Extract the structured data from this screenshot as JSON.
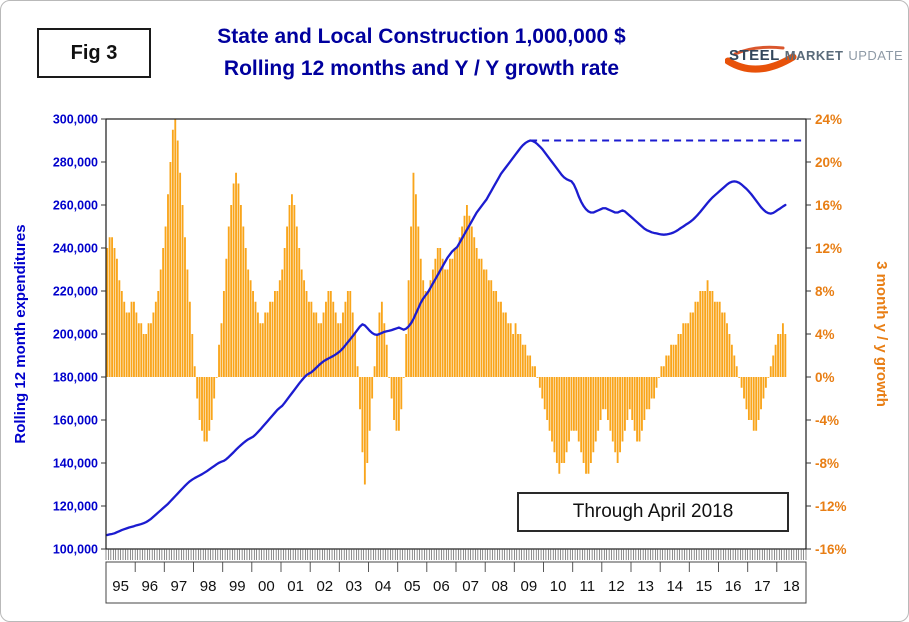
{
  "figure": {
    "fig_label": "Fig 3",
    "title_line1": "State and Local Construction 1,000,000 $",
    "title_line2": "Rolling 12 months and Y / Y growth rate",
    "annotation": "Through April 2018",
    "logo": {
      "steel": "STEEL",
      "market": "MARKET",
      "update": "UPDATE"
    }
  },
  "colors": {
    "title": "#00009E",
    "line": "#1C1CD0",
    "left_axis": "#0000CC",
    "bar": "#F9A51B",
    "right_axis": "#E87E14",
    "axis_ink": "#333333",
    "logo_swoosh": "#E8520A"
  },
  "chart_data": {
    "type": "bar+line combo",
    "title": "State and Local Construction 1,000,000 $ — Rolling 12 months and Y / Y growth rate",
    "x_monthly_start": "1995-01",
    "x_monthly_end": "2018-04",
    "months_per_axis": 288,
    "year_labels": [
      "95",
      "96",
      "97",
      "98",
      "99",
      "00",
      "01",
      "02",
      "03",
      "04",
      "05",
      "06",
      "07",
      "08",
      "09",
      "10",
      "11",
      "12",
      "13",
      "14",
      "15",
      "16",
      "17",
      "18"
    ],
    "left_axis": {
      "title": "Rolling 12 month expenditures",
      "min": 100000,
      "max": 300000,
      "step": 20000,
      "tick_values": [
        300000,
        280000,
        260000,
        240000,
        220000,
        200000,
        180000,
        160000,
        140000,
        120000,
        100000
      ],
      "tick_labels": [
        "300,000",
        "280,000",
        "260,000",
        "240,000",
        "220,000",
        "200,000",
        "180,000",
        "160,000",
        "140,000",
        "120,000",
        "100,000"
      ]
    },
    "right_axis": {
      "title": "3 month y / y growth",
      "min": -16,
      "max": 24,
      "step": 4,
      "tick_values": [
        24,
        20,
        16,
        12,
        8,
        4,
        0,
        -4,
        -8,
        -12,
        -16
      ],
      "tick_labels": [
        "24%",
        "20%",
        "16%",
        "12%",
        "8%",
        "4%",
        "0%",
        "-4%",
        "-8%",
        "-12%",
        "-16%"
      ]
    },
    "reference_line": {
      "style": "dashed",
      "axis": "left",
      "value": 290000,
      "start_month_index": 174
    },
    "series": [
      {
        "name": "Rolling 12 month expenditures",
        "type": "line",
        "axis": "left",
        "values": [
          106500,
          106800,
          107000,
          107300,
          107800,
          108300,
          108800,
          109200,
          109600,
          110000,
          110300,
          110600,
          111000,
          111300,
          111600,
          112000,
          112500,
          113200,
          114000,
          115000,
          116000,
          117000,
          118000,
          119000,
          120000,
          121000,
          122200,
          123400,
          124600,
          125800,
          127000,
          128200,
          129400,
          130500,
          131500,
          132300,
          133000,
          133600,
          134200,
          134800,
          135500,
          136200,
          137000,
          137800,
          138600,
          139400,
          140100,
          140600,
          141000,
          141800,
          142800,
          143900,
          145000,
          146200,
          147300,
          148300,
          149300,
          150200,
          151000,
          151600,
          152200,
          153200,
          154400,
          155600,
          156900,
          158200,
          159500,
          160800,
          162100,
          163400,
          164700,
          165700,
          166600,
          168000,
          169500,
          171000,
          172500,
          174000,
          175500,
          177000,
          178400,
          179700,
          180900,
          181600,
          182200,
          183200,
          184300,
          185400,
          186400,
          187300,
          188000,
          188600,
          189200,
          189800,
          190500,
          191300,
          192200,
          193400,
          194800,
          196200,
          197600,
          199000,
          200500,
          202000,
          203500,
          204500,
          204000,
          202800,
          201500,
          200500,
          199800,
          199600,
          200000,
          200500,
          201000,
          201300,
          201500,
          201800,
          202200,
          202600,
          203000,
          202500,
          202000,
          202500,
          203500,
          205000,
          207000,
          209500,
          212000,
          214500,
          216500,
          218000,
          219500,
          221500,
          223500,
          225500,
          227500,
          229500,
          231500,
          233500,
          235500,
          237000,
          238500,
          239500,
          240500,
          242500,
          244500,
          246500,
          248500,
          250500,
          252500,
          254500,
          256500,
          258000,
          259500,
          261000,
          262500,
          264500,
          266500,
          268500,
          270500,
          272500,
          274500,
          276000,
          277500,
          279000,
          280500,
          282000,
          283500,
          285000,
          286500,
          287800,
          288800,
          289500,
          290000,
          289800,
          289200,
          288300,
          287200,
          286000,
          284500,
          283000,
          281500,
          280000,
          278500,
          277000,
          275500,
          274000,
          272800,
          272000,
          271500,
          271000,
          269500,
          267000,
          264000,
          261500,
          259500,
          258000,
          257000,
          256500,
          256500,
          257000,
          257500,
          258000,
          258500,
          258500,
          258000,
          257500,
          257000,
          256500,
          256500,
          257000,
          257500,
          257000,
          256000,
          255000,
          254000,
          253000,
          252000,
          251000,
          250000,
          249000,
          248300,
          247800,
          247300,
          247000,
          246800,
          246500,
          246300,
          246200,
          246300,
          246500,
          246800,
          247200,
          247800,
          248500,
          249300,
          250000,
          250800,
          251500,
          252300,
          253200,
          254300,
          255500,
          256800,
          258200,
          259600,
          261000,
          262300,
          263500,
          264500,
          265500,
          266500,
          267500,
          268500,
          269500,
          270300,
          270800,
          271000,
          270800,
          270300,
          269500,
          268500,
          267500,
          266300,
          265000,
          263500,
          262000,
          260500,
          259000,
          257800,
          256800,
          256200,
          256000,
          256300,
          257000,
          257800,
          258500,
          259300,
          260000
        ]
      },
      {
        "name": "3 month y / y growth",
        "type": "bar",
        "axis": "right",
        "values": [
          12,
          13,
          13,
          12,
          11,
          9,
          8,
          7,
          6,
          6,
          7,
          7,
          6,
          5,
          5,
          4,
          4,
          5,
          5,
          6,
          7,
          8,
          10,
          12,
          14,
          17,
          20,
          23,
          24,
          22,
          19,
          16,
          13,
          10,
          7,
          4,
          1,
          -2,
          -4,
          -5,
          -6,
          -6,
          -5,
          -4,
          -2,
          0,
          3,
          5,
          8,
          11,
          14,
          16,
          18,
          19,
          18,
          16,
          14,
          12,
          10,
          9,
          8,
          7,
          6,
          5,
          5,
          6,
          6,
          7,
          7,
          8,
          8,
          9,
          10,
          12,
          14,
          16,
          17,
          16,
          14,
          12,
          10,
          9,
          8,
          7,
          7,
          6,
          6,
          5,
          5,
          6,
          7,
          8,
          8,
          7,
          6,
          5,
          5,
          6,
          7,
          8,
          8,
          6,
          4,
          1,
          -3,
          -7,
          -10,
          -8,
          -5,
          -2,
          1,
          4,
          6,
          7,
          5,
          3,
          0,
          -2,
          -4,
          -5,
          -5,
          -3,
          0,
          4,
          9,
          14,
          19,
          17,
          14,
          11,
          9,
          8,
          8,
          9,
          10,
          11,
          12,
          12,
          11,
          10,
          10,
          11,
          11,
          12,
          12,
          13,
          14,
          15,
          16,
          15,
          14,
          13,
          12,
          11,
          11,
          10,
          10,
          9,
          9,
          8,
          8,
          7,
          7,
          6,
          6,
          5,
          5,
          4,
          5,
          4,
          4,
          3,
          3,
          2,
          2,
          1,
          1,
          0,
          -1,
          -2,
          -3,
          -4,
          -5,
          -6,
          -7,
          -8,
          -9,
          -8,
          -8,
          -7,
          -6,
          -5,
          -5,
          -5,
          -6,
          -7,
          -8,
          -9,
          -9,
          -8,
          -7,
          -6,
          -5,
          -4,
          -3,
          -3,
          -4,
          -5,
          -6,
          -7,
          -8,
          -7,
          -6,
          -5,
          -4,
          -3,
          -4,
          -5,
          -6,
          -6,
          -5,
          -4,
          -3,
          -3,
          -2,
          -2,
          -1,
          0,
          1,
          1,
          2,
          2,
          3,
          3,
          3,
          4,
          4,
          5,
          5,
          5,
          6,
          6,
          7,
          7,
          8,
          8,
          8,
          9,
          8,
          8,
          7,
          7,
          7,
          6,
          6,
          5,
          4,
          3,
          2,
          1,
          0,
          -1,
          -2,
          -3,
          -4,
          -4,
          -5,
          -5,
          -4,
          -3,
          -2,
          -1,
          0,
          1,
          2,
          3,
          4,
          4,
          5,
          4
        ]
      }
    ]
  }
}
